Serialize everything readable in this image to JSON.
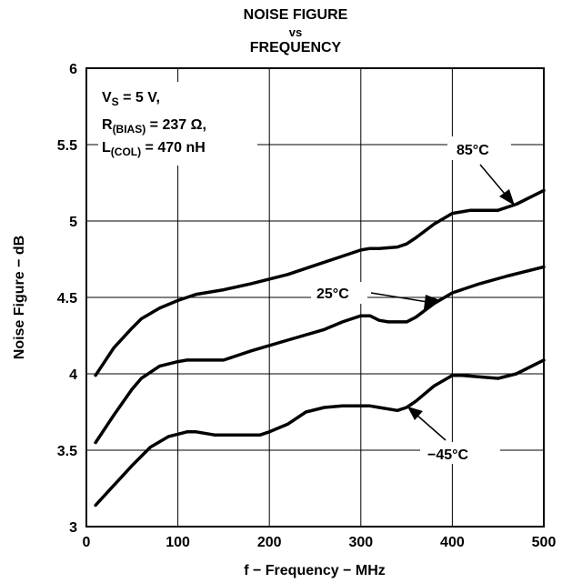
{
  "chart_data": {
    "type": "line",
    "title_lines": [
      "NOISE FIGURE",
      "vs",
      "FREQUENCY"
    ],
    "xlabel": "f − Frequency − MHz",
    "ylabel": "Noise Figure − dB",
    "xlim": [
      0,
      500
    ],
    "ylim": [
      3,
      6
    ],
    "xticks": [
      0,
      100,
      200,
      300,
      400,
      500
    ],
    "xtick_labels": [
      "0",
      "100",
      "200",
      "300",
      "400",
      "500"
    ],
    "yticks": [
      3,
      3.5,
      4,
      4.5,
      5,
      5.5,
      6
    ],
    "ytick_labels": [
      "3",
      "3.5",
      "4",
      "4.5",
      "5",
      "5.5",
      "6"
    ],
    "grid": true,
    "conditions": {
      "vs_main": "V",
      "vs_sub": "S",
      "vs_rest": " = 5 V,",
      "rbias_main": "R",
      "rbias_sub": "(BIAS)",
      "rbias_rest": " = 237 Ω,",
      "lcol_main": "L",
      "lcol_sub": "(COL)",
      "lcol_rest": " = 470 nH"
    },
    "series": [
      {
        "name": "85°C",
        "x": [
          10,
          30,
          50,
          60,
          80,
          100,
          120,
          150,
          180,
          220,
          250,
          280,
          300,
          310,
          320,
          340,
          350,
          360,
          380,
          400,
          420,
          450,
          470,
          500
        ],
        "y": [
          3.99,
          4.17,
          4.3,
          4.36,
          4.43,
          4.48,
          4.52,
          4.55,
          4.59,
          4.65,
          4.71,
          4.77,
          4.81,
          4.82,
          4.82,
          4.83,
          4.85,
          4.89,
          4.98,
          5.05,
          5.07,
          5.07,
          5.11,
          5.2
        ]
      },
      {
        "name": "25°C",
        "x": [
          10,
          30,
          50,
          60,
          80,
          100,
          110,
          150,
          180,
          220,
          260,
          280,
          300,
          310,
          320,
          330,
          340,
          350,
          360,
          380,
          400,
          430,
          460,
          500
        ],
        "y": [
          3.55,
          3.73,
          3.9,
          3.97,
          4.05,
          4.08,
          4.09,
          4.09,
          4.15,
          4.22,
          4.29,
          4.34,
          4.38,
          4.38,
          4.35,
          4.34,
          4.34,
          4.34,
          4.37,
          4.46,
          4.53,
          4.59,
          4.64,
          4.7
        ]
      },
      {
        "name": "−45°C",
        "x": [
          10,
          30,
          50,
          70,
          90,
          110,
          120,
          140,
          160,
          190,
          200,
          220,
          240,
          260,
          280,
          300,
          310,
          320,
          340,
          350,
          360,
          380,
          400,
          410,
          430,
          450,
          470,
          500
        ],
        "y": [
          3.14,
          3.27,
          3.4,
          3.52,
          3.59,
          3.62,
          3.62,
          3.6,
          3.6,
          3.6,
          3.62,
          3.67,
          3.75,
          3.78,
          3.79,
          3.79,
          3.79,
          3.78,
          3.76,
          3.78,
          3.82,
          3.92,
          3.99,
          3.99,
          3.98,
          3.97,
          4.0,
          4.09
        ]
      }
    ]
  },
  "legend": {
    "label_85": "85°C",
    "label_25": "25°C",
    "label_m45": "−45°C"
  },
  "colors": {
    "line": "#000000",
    "grid": "#000000",
    "background": "#ffffff"
  }
}
